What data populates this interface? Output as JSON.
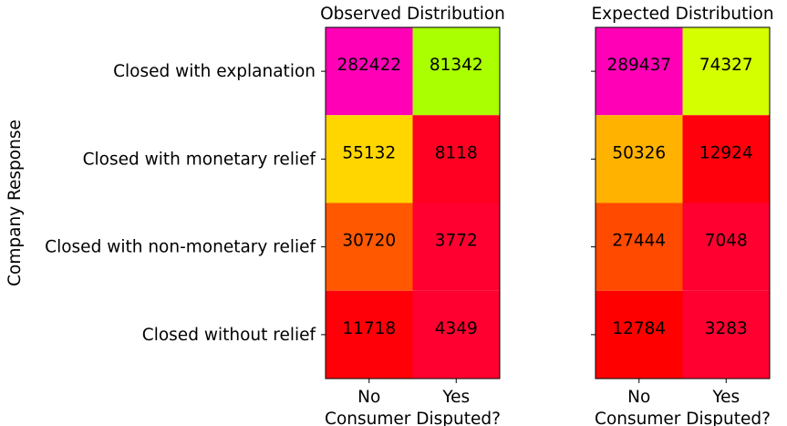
{
  "chart_data": [
    {
      "type": "heatmap",
      "title": "Observed Distribution",
      "xlabel": "Consumer Disputed?",
      "ylabel": "Company Response",
      "x_categories": [
        "No",
        "Yes"
      ],
      "y_categories": [
        "Closed with explanation",
        "Closed with monetary relief",
        "Closed with non-monetary relief",
        "Closed without relief"
      ],
      "values": [
        [
          282422,
          81342
        ],
        [
          55132,
          8118
        ],
        [
          30720,
          3772
        ],
        [
          11718,
          4349
        ]
      ],
      "colors": [
        [
          "#ff00b7",
          "#aaff00"
        ],
        [
          "#ffd600",
          "#ff0022"
        ],
        [
          "#ff5800",
          "#ff0030"
        ],
        [
          "#ff0008",
          "#ff0030"
        ]
      ],
      "show_y_tick_labels": true
    },
    {
      "type": "heatmap",
      "title": "Expected Distribution",
      "xlabel": "Consumer Disputed?",
      "ylabel": "",
      "x_categories": [
        "No",
        "Yes"
      ],
      "y_categories": [
        "Closed with explanation",
        "Closed with monetary relief",
        "Closed with non-monetary relief",
        "Closed without relief"
      ],
      "values": [
        [
          289437,
          74327
        ],
        [
          50326,
          12924
        ],
        [
          27444,
          7048
        ],
        [
          12784,
          3283
        ]
      ],
      "colors": [
        [
          "#ff00b7",
          "#d4ff00"
        ],
        [
          "#ffb300",
          "#ff000c"
        ],
        [
          "#ff4a00",
          "#ff0030"
        ],
        [
          "#ff0000",
          "#ff0030"
        ]
      ],
      "show_y_tick_labels": false
    }
  ]
}
